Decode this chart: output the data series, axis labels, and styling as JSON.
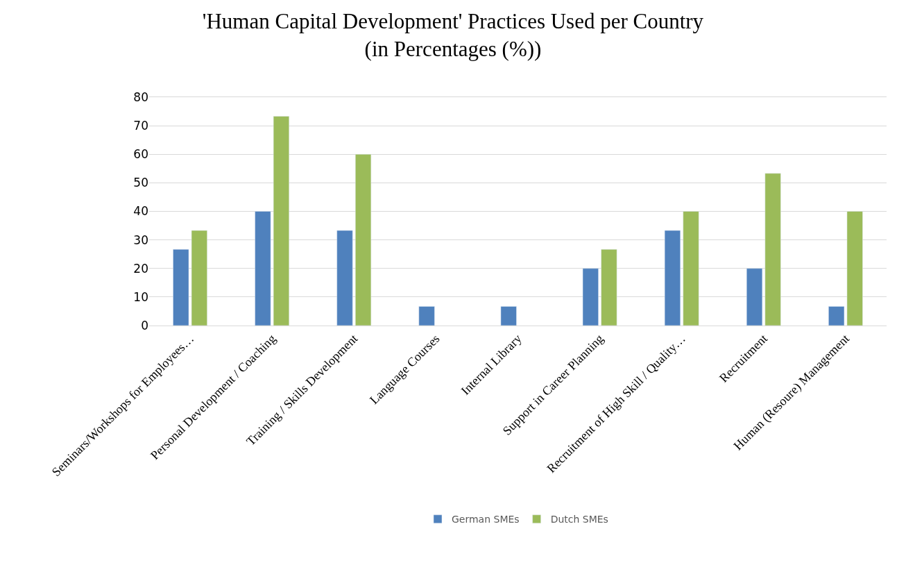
{
  "chart_data": {
    "type": "bar",
    "title": "'Human Capital Development' Practices Used per Country\n(in Percentages (%))",
    "categories": [
      "Seminars/Workshops for Employees…",
      "Personal Development / Coaching",
      "Training / Skills Development",
      "Language Courses",
      "Internal Library",
      "Support in Career Planning",
      "Recruitment of High Skill / Quality…",
      "Recruitment",
      "Human (Resoure) Management"
    ],
    "series": [
      {
        "name": "German SMEs",
        "color": "#4f81bd",
        "values": [
          26.7,
          40,
          33.3,
          6.7,
          6.7,
          20,
          33.3,
          20,
          6.7
        ]
      },
      {
        "name": "Dutch SMEs",
        "color": "#9bbb59",
        "values": [
          33.3,
          73.3,
          60,
          null,
          null,
          26.7,
          40,
          53.3,
          40
        ]
      }
    ],
    "ylim": [
      0,
      80
    ],
    "yticks": [
      0,
      10,
      20,
      30,
      40,
      50,
      60,
      70,
      80
    ],
    "grid": "y",
    "legend": "bottom"
  }
}
